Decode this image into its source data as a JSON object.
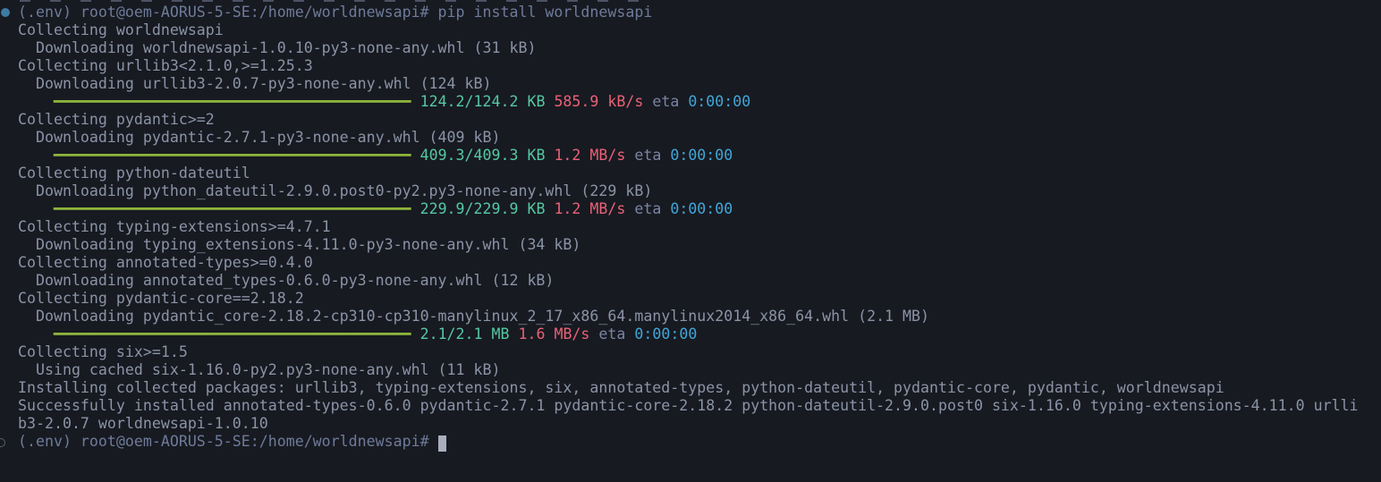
{
  "terminal": {
    "colors": {
      "background": "#171a21",
      "prompt": "#6e7b99",
      "command": "#6e7b99",
      "output": "#8b93a6",
      "progress_bar": "#8fb53c",
      "download_size": "#55c8a2",
      "download_speed": "#ea6176",
      "eta_label": "#7a84a0",
      "eta_time": "#41a6d9",
      "cursor": "#a9afbc",
      "command_decoration": "#3d7ba5",
      "pending_decoration": "#5a6170"
    },
    "cursor": {
      "visible": true
    },
    "lines": [
      {
        "decoration": "command-dot",
        "segments": [
          {
            "style": "prompt",
            "text": "(.env) root@oem-AORUS-5-SE:/home/worldnewsapi# "
          },
          {
            "style": "command",
            "text": "pip install worldnewsapi"
          }
        ]
      },
      {
        "segments": [
          {
            "style": "output",
            "text": "Collecting worldnewsapi"
          }
        ]
      },
      {
        "segments": [
          {
            "style": "output",
            "text": "  Downloading worldnewsapi-1.0.10-py3-none-any.whl (31 kB)"
          }
        ]
      },
      {
        "segments": [
          {
            "style": "output",
            "text": "Collecting urllib3<2.1.0,>=1.25.3"
          }
        ]
      },
      {
        "segments": [
          {
            "style": "output",
            "text": "  Downloading urllib3-2.0.7-py3-none-any.whl (124 kB)"
          }
        ]
      },
      {
        "segments": [
          {
            "style": "output",
            "text": "    "
          },
          {
            "style": "bar",
            "text": "━━━━━━━━━━━━━━━━━━━━━━━━━━━━━━━━━━━━━━━━"
          },
          {
            "style": "size",
            "text": " 124.2/124.2 KB"
          },
          {
            "style": "speed",
            "text": " 585.9 kB/s"
          },
          {
            "style": "eta",
            "text": " eta"
          },
          {
            "style": "time",
            "text": " 0:00:00"
          }
        ]
      },
      {
        "segments": [
          {
            "style": "output",
            "text": "Collecting pydantic>=2"
          }
        ]
      },
      {
        "segments": [
          {
            "style": "output",
            "text": "  Downloading pydantic-2.7.1-py3-none-any.whl (409 kB)"
          }
        ]
      },
      {
        "segments": [
          {
            "style": "output",
            "text": "    "
          },
          {
            "style": "bar",
            "text": "━━━━━━━━━━━━━━━━━━━━━━━━━━━━━━━━━━━━━━━━"
          },
          {
            "style": "size",
            "text": " 409.3/409.3 KB"
          },
          {
            "style": "speed",
            "text": " 1.2 MB/s"
          },
          {
            "style": "eta",
            "text": " eta"
          },
          {
            "style": "time",
            "text": " 0:00:00"
          }
        ]
      },
      {
        "segments": [
          {
            "style": "output",
            "text": "Collecting python-dateutil"
          }
        ]
      },
      {
        "segments": [
          {
            "style": "output",
            "text": "  Downloading python_dateutil-2.9.0.post0-py2.py3-none-any.whl (229 kB)"
          }
        ]
      },
      {
        "segments": [
          {
            "style": "output",
            "text": "    "
          },
          {
            "style": "bar",
            "text": "━━━━━━━━━━━━━━━━━━━━━━━━━━━━━━━━━━━━━━━━"
          },
          {
            "style": "size",
            "text": " 229.9/229.9 KB"
          },
          {
            "style": "speed",
            "text": " 1.2 MB/s"
          },
          {
            "style": "eta",
            "text": " eta"
          },
          {
            "style": "time",
            "text": " 0:00:00"
          }
        ]
      },
      {
        "segments": [
          {
            "style": "output",
            "text": "Collecting typing-extensions>=4.7.1"
          }
        ]
      },
      {
        "segments": [
          {
            "style": "output",
            "text": "  Downloading typing_extensions-4.11.0-py3-none-any.whl (34 kB)"
          }
        ]
      },
      {
        "segments": [
          {
            "style": "output",
            "text": "Collecting annotated-types>=0.4.0"
          }
        ]
      },
      {
        "segments": [
          {
            "style": "output",
            "text": "  Downloading annotated_types-0.6.0-py3-none-any.whl (12 kB)"
          }
        ]
      },
      {
        "segments": [
          {
            "style": "output",
            "text": "Collecting pydantic-core==2.18.2"
          }
        ]
      },
      {
        "segments": [
          {
            "style": "output",
            "text": "  Downloading pydantic_core-2.18.2-cp310-cp310-manylinux_2_17_x86_64.manylinux2014_x86_64.whl (2.1 MB)"
          }
        ]
      },
      {
        "segments": [
          {
            "style": "output",
            "text": "    "
          },
          {
            "style": "bar",
            "text": "━━━━━━━━━━━━━━━━━━━━━━━━━━━━━━━━━━━━━━━━"
          },
          {
            "style": "size",
            "text": " 2.1/2.1 MB"
          },
          {
            "style": "speed",
            "text": " 1.6 MB/s"
          },
          {
            "style": "eta",
            "text": " eta"
          },
          {
            "style": "time",
            "text": " 0:00:00"
          }
        ]
      },
      {
        "segments": [
          {
            "style": "output",
            "text": "Collecting six>=1.5"
          }
        ]
      },
      {
        "segments": [
          {
            "style": "output",
            "text": "  Using cached six-1.16.0-py2.py3-none-any.whl (11 kB)"
          }
        ]
      },
      {
        "segments": [
          {
            "style": "output",
            "text": "Installing collected packages: urllib3, typing-extensions, six, annotated-types, python-dateutil, pydantic-core, pydantic, worldnewsapi"
          }
        ]
      },
      {
        "segments": [
          {
            "style": "output",
            "text": "Successfully installed annotated-types-0.6.0 pydantic-2.7.1 pydantic-core-2.18.2 python-dateutil-2.9.0.post0 six-1.16.0 typing-extensions-4.11.0 urlli"
          }
        ]
      },
      {
        "segments": [
          {
            "style": "output",
            "text": "b3-2.0.7 worldnewsapi-1.0.10"
          }
        ]
      },
      {
        "decoration": "pending-circle",
        "cursor": true,
        "segments": [
          {
            "style": "prompt",
            "text": "(.env) root@oem-AORUS-5-SE:/home/worldnewsapi# "
          }
        ]
      }
    ]
  }
}
